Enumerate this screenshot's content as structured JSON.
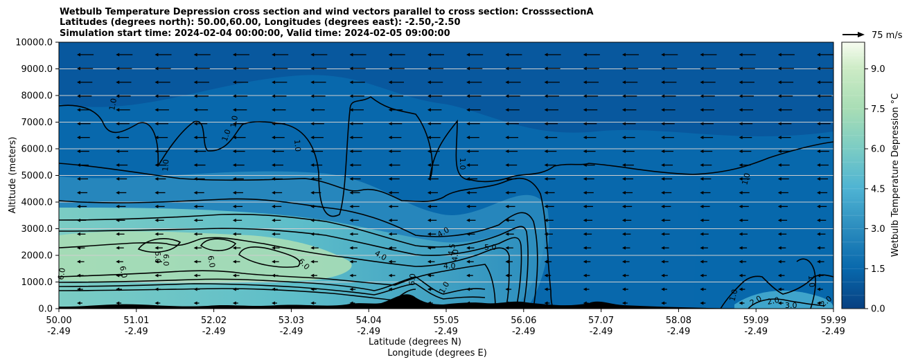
{
  "chart_data": {
    "type": "contourf",
    "title_lines": [
      "Wetbulb Temperature Depression cross section and wind vectors parallel to cross section: CrosssectionA",
      "Latitudes (degrees north): 50.00,60.00, Longitudes (degrees east): -2.50,-2.50",
      "Simulation start time: 2024-02-04 00:00:00, Valid time: 2024-02-05 09:00:00"
    ],
    "ylabel": "Altitude (meters)",
    "xlabel_lat": "Latitude (degrees N)",
    "xlabel_lon": "Longitude (degrees E)",
    "ylim": [
      0,
      10000
    ],
    "y_ticks": [
      "0.0",
      "1000.0",
      "2000.0",
      "3000.0",
      "4000.0",
      "5000.0",
      "6000.0",
      "7000.0",
      "8000.0",
      "9000.0",
      "10000.0"
    ],
    "x_ticks": [
      {
        "lat": "50.00",
        "lon": "-2.49"
      },
      {
        "lat": "51.01",
        "lon": "-2.49"
      },
      {
        "lat": "52.02",
        "lon": "-2.49"
      },
      {
        "lat": "53.03",
        "lon": "-2.49"
      },
      {
        "lat": "54.04",
        "lon": "-2.49"
      },
      {
        "lat": "55.05",
        "lon": "-2.49"
      },
      {
        "lat": "56.06",
        "lon": "-2.49"
      },
      {
        "lat": "57.07",
        "lon": "-2.49"
      },
      {
        "lat": "58.08",
        "lon": "-2.49"
      },
      {
        "lat": "59.09",
        "lon": "-2.49"
      },
      {
        "lat": "59.99",
        "lon": "-2.49"
      }
    ],
    "colorbar": {
      "label": "Wetbulb Temperature Depression $^\\circ$C",
      "range": [
        0,
        10
      ],
      "ticks": [
        "0.0",
        "1.5",
        "3.0",
        "4.5",
        "6.0",
        "7.5",
        "9.0"
      ]
    },
    "quiver_key": "75 m/s",
    "contour_labels": [
      "1.0",
      "1.0",
      "1.0",
      "1.0",
      "1.0",
      "1.0",
      "4.0",
      "4.0",
      "4.0",
      "4.0",
      "4.5",
      "5.0",
      "6.0",
      "6.0",
      "6.0",
      "6.0",
      "6.0",
      "6.0",
      "6.0",
      "1.0",
      "1.0",
      "1.0",
      "1.0",
      "2.0",
      "2.0",
      "3.0",
      "2.0"
    ],
    "gridlines": "horizontal",
    "wind_direction": "southward (leftward arrows)"
  }
}
